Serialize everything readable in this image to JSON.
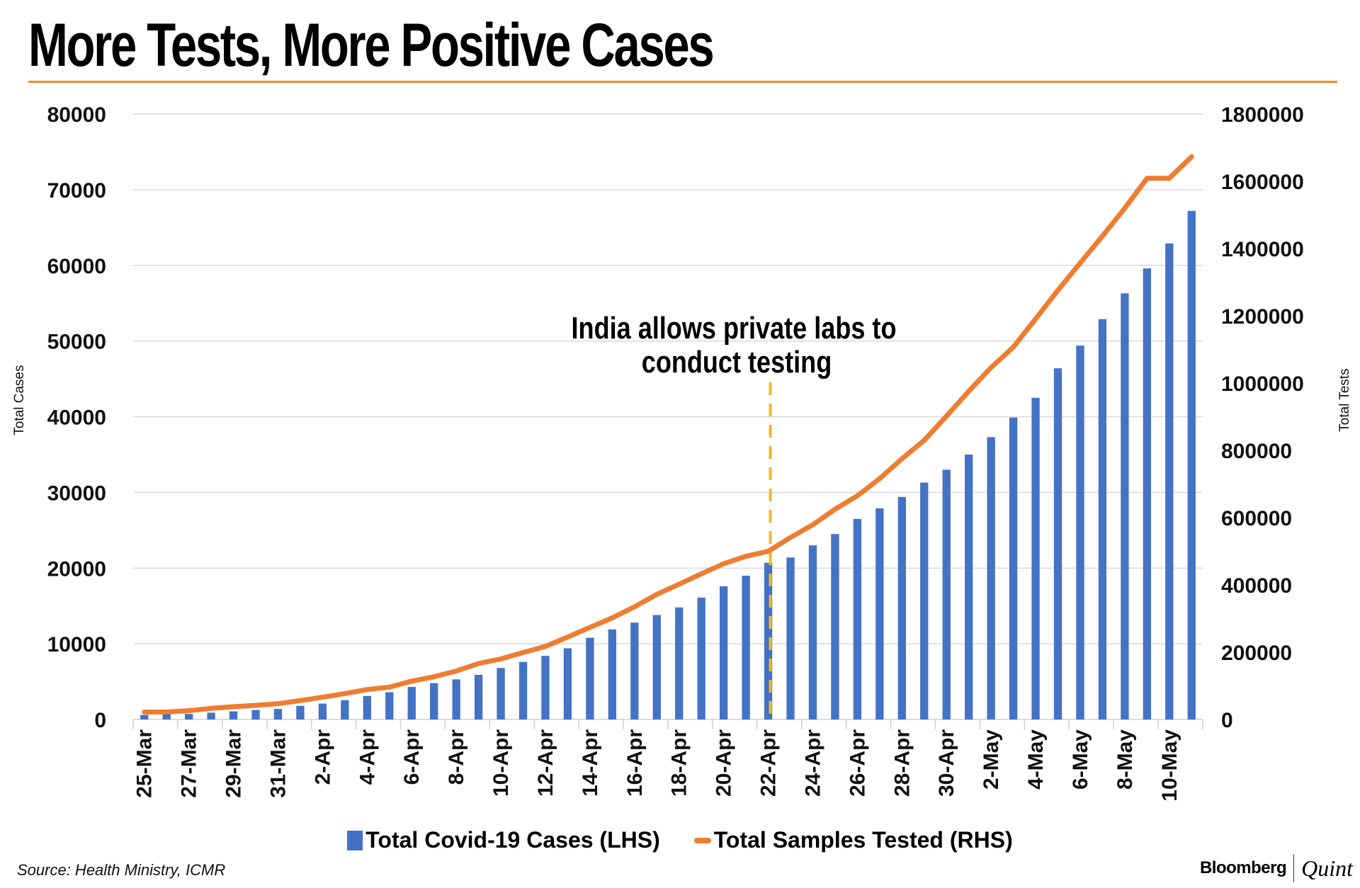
{
  "header": {
    "title": "More Tests, More Positive Cases"
  },
  "footer": {
    "source": "Source: Health Ministry, ICMR",
    "brand_primary": "Bloomberg",
    "brand_secondary": "Quint"
  },
  "colors": {
    "bars": "#4472c4",
    "line": "#ed7d31",
    "annotation_line": "#f2b81e",
    "title_rule": "#f08a24",
    "grid": "#d9d9d9"
  },
  "chart_data": {
    "type": "bar",
    "title": "More Tests, More Positive Cases",
    "ylabel": "Total Cases",
    "y2label": "Total Tests",
    "ylim": [
      0,
      80000
    ],
    "y2lim": [
      0,
      1800000
    ],
    "yticks": [
      "0",
      "10000",
      "20000",
      "30000",
      "40000",
      "50000",
      "60000",
      "70000",
      "80000"
    ],
    "y2ticks": [
      "0",
      "200000",
      "400000",
      "600000",
      "800000",
      "1000000",
      "1200000",
      "1400000",
      "1600000",
      "1800000"
    ],
    "grid": true,
    "legend_position": "bottom",
    "x": [
      "25-Mar",
      "26-Mar",
      "27-Mar",
      "28-Mar",
      "29-Mar",
      "30-Mar",
      "31-Mar",
      "1-Apr",
      "2-Apr",
      "3-Apr",
      "4-Apr",
      "5-Apr",
      "6-Apr",
      "7-Apr",
      "8-Apr",
      "9-Apr",
      "10-Apr",
      "11-Apr",
      "12-Apr",
      "13-Apr",
      "14-Apr",
      "15-Apr",
      "16-Apr",
      "17-Apr",
      "18-Apr",
      "19-Apr",
      "20-Apr",
      "21-Apr",
      "22-Apr",
      "23-Apr",
      "24-Apr",
      "25-Apr",
      "26-Apr",
      "27-Apr",
      "28-Apr",
      "29-Apr",
      "30-Apr",
      "1-May",
      "2-May",
      "3-May",
      "4-May",
      "5-May",
      "6-May",
      "7-May",
      "8-May",
      "9-May",
      "10-May",
      "11-May"
    ],
    "xtick_labels": [
      "25-Mar",
      "27-Mar",
      "29-Mar",
      "31-Mar",
      "2-Apr",
      "4-Apr",
      "6-Apr",
      "8-Apr",
      "10-Apr",
      "12-Apr",
      "14-Apr",
      "16-Apr",
      "18-Apr",
      "20-Apr",
      "22-Apr",
      "24-Apr",
      "26-Apr",
      "28-Apr",
      "30-Apr",
      "2-May",
      "4-May",
      "6-May",
      "8-May",
      "10-May"
    ],
    "series": [
      {
        "name": "Total Covid-19 Cases (LHS)",
        "type": "bar",
        "axis": "left",
        "values": [
          600,
          700,
          730,
          900,
          1070,
          1250,
          1400,
          1800,
          2100,
          2550,
          3100,
          3600,
          4300,
          4800,
          5300,
          5900,
          6800,
          7600,
          8400,
          9400,
          10800,
          11900,
          12800,
          13800,
          14800,
          16100,
          17600,
          19000,
          20700,
          21400,
          23000,
          24500,
          26500,
          27900,
          29400,
          31300,
          33000,
          35000,
          37300,
          39900,
          42500,
          46400,
          49400,
          52900,
          56300,
          59600,
          62900,
          67200
        ]
      },
      {
        "name": "Total Samples Tested (RHS)",
        "type": "line",
        "axis": "right",
        "values": [
          22000,
          22000,
          26000,
          33000,
          38000,
          42000,
          47000,
          56000,
          66000,
          77000,
          89000,
          96000,
          114000,
          127000,
          144000,
          166000,
          180000,
          199000,
          217000,
          245000,
          274000,
          302000,
          335000,
          372000,
          402000,
          433000,
          463000,
          485000,
          500000,
          541000,
          579000,
          625000,
          665000,
          716000,
          775000,
          830000,
          902000,
          976000,
          1046000,
          1107000,
          1191000,
          1276000,
          1357000,
          1437000,
          1520000,
          1609000,
          1673000,
          1673000
        ]
      }
    ],
    "annotations": [
      {
        "text_line1": "India allows private labs to",
        "text_line2": "conduct testing",
        "x": "22-Apr",
        "style": "dashed vertical line"
      }
    ]
  }
}
